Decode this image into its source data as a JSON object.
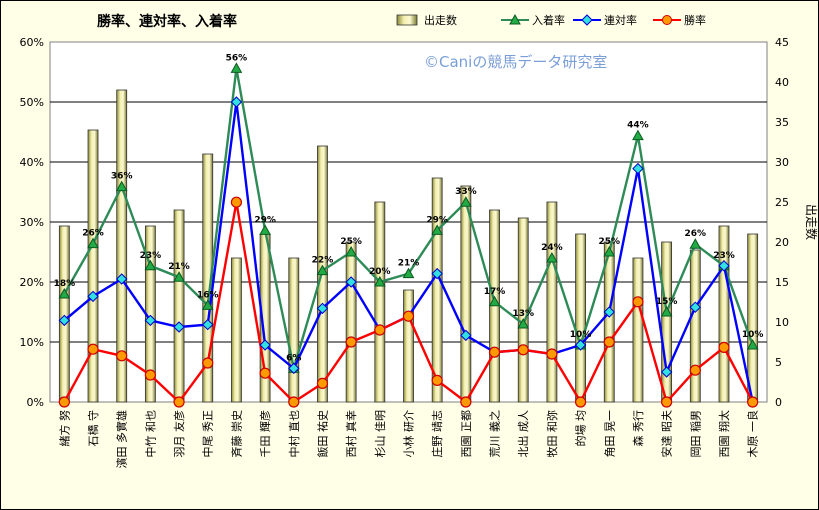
{
  "chart_data": {
    "type": "bar-line-combo",
    "title": "勝率、連対率、入着率",
    "watermark": "©Caniの競馬データ研究室",
    "y2label": "出走数",
    "left_axis": {
      "min": 0,
      "max": 60,
      "ticks": [
        "0%",
        "10%",
        "20%",
        "30%",
        "40%",
        "50%",
        "60%"
      ]
    },
    "right_axis": {
      "min": 0,
      "max": 45,
      "ticks": [
        "0",
        "5",
        "10",
        "15",
        "20",
        "25",
        "30",
        "35",
        "40",
        "45"
      ]
    },
    "legend": [
      "出走数",
      "入着率",
      "連対率",
      "勝率"
    ],
    "legend_position": "top",
    "grid": true,
    "categories": [
      "緒方 努",
      "石橋 守",
      "濱田 多實雄",
      "中竹 和也",
      "羽月 友彦",
      "中尾 秀正",
      "斉藤 崇史",
      "千田 輝彦",
      "中村 直也",
      "飯田 祐史",
      "西村 真幸",
      "杉山 佳明",
      "小林 研介",
      "庄野 靖志",
      "西園 正都",
      "荒川 義之",
      "北出 成人",
      "牧田 和弥",
      "的場 均",
      "角田 晃一",
      "森 秀行",
      "安達 昭夫",
      "岡田 稲男",
      "西園 翔太",
      "木原 一良"
    ],
    "series": [
      {
        "name": "出走数",
        "axis": "right",
        "kind": "bar",
        "color": "#ece8a0",
        "values": [
          22,
          34,
          39,
          22,
          24,
          31,
          18,
          21,
          18,
          32,
          20,
          25,
          14,
          28,
          27,
          24,
          23,
          25,
          21,
          20,
          18,
          20,
          19,
          22,
          21
        ]
      },
      {
        "name": "入着率",
        "axis": "left",
        "kind": "line",
        "color": "#2e8b57",
        "values": [
          18,
          26.4,
          35.9,
          22.7,
          20.8,
          16.1,
          55.6,
          28.6,
          5.6,
          21.9,
          25,
          20,
          21.4,
          28.6,
          33.3,
          16.7,
          13,
          24,
          9.5,
          25,
          44.4,
          15,
          26.3,
          22.7,
          9.5
        ],
        "labels": [
          "18%",
          "26%",
          "36%",
          "23%",
          "21%",
          "16%",
          "56%",
          "29%",
          "6%",
          "22%",
          "25%",
          "20%",
          "21%",
          "29%",
          "33%",
          "17%",
          "13%",
          "24%",
          "10%",
          "25%",
          "44%",
          "15%",
          "26%",
          "23%",
          "10%"
        ]
      },
      {
        "name": "連対率",
        "axis": "left",
        "kind": "line",
        "color": "#0000ff",
        "values": [
          13.6,
          17.6,
          20.5,
          13.6,
          12.5,
          12.9,
          50,
          9.5,
          5.6,
          15.6,
          20,
          12,
          14.3,
          21.4,
          11.1,
          8.3,
          8.7,
          8,
          9.5,
          15,
          38.9,
          5,
          15.8,
          22.7,
          0
        ]
      },
      {
        "name": "勝率",
        "axis": "left",
        "kind": "line",
        "color": "#ff0000",
        "values": [
          0,
          8.8,
          7.7,
          4.5,
          0,
          6.5,
          33.3,
          4.8,
          0,
          3.1,
          10,
          12,
          14.3,
          3.6,
          0,
          8.3,
          8.7,
          8,
          0,
          10,
          16.7,
          0,
          5.3,
          9.1,
          0
        ]
      }
    ]
  }
}
